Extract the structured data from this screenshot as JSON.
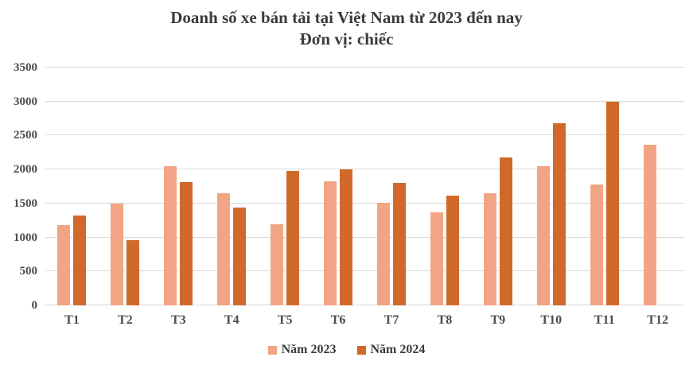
{
  "title": "Doanh số xe bán tải tại Việt Nam từ 2023 đến nay",
  "subtitle": "Đơn vị: chiếc",
  "colors": {
    "series_2023": "#F2A584",
    "series_2024": "#D0692A",
    "gridline": "#D9D9D9",
    "axis_text": "#4D4D4D",
    "title_text": "#3B3B3B",
    "background": "#FFFFFF"
  },
  "chart_data": {
    "type": "bar",
    "title": "Doanh số xe bán tải tại Việt Nam từ 2023 đến nay",
    "subtitle": "Đơn vị: chiếc",
    "categories": [
      "T1",
      "T2",
      "T3",
      "T4",
      "T5",
      "T6",
      "T7",
      "T8",
      "T9",
      "T10",
      "T11",
      "T12"
    ],
    "series": [
      {
        "name": "Năm 2023",
        "color": "#F2A584",
        "values": [
          1180,
          1500,
          2050,
          1650,
          1190,
          1830,
          1510,
          1370,
          1650,
          2050,
          1780,
          2360
        ]
      },
      {
        "name": "Năm 2024",
        "color": "#D0692A",
        "values": [
          1320,
          960,
          1810,
          1440,
          1980,
          2000,
          1800,
          1620,
          2180,
          2680,
          3000,
          null
        ]
      }
    ],
    "xlabel": "",
    "ylabel": "",
    "ylim": [
      0,
      3500
    ],
    "ytick_step": 500,
    "grid": true,
    "legend_position": "bottom"
  }
}
